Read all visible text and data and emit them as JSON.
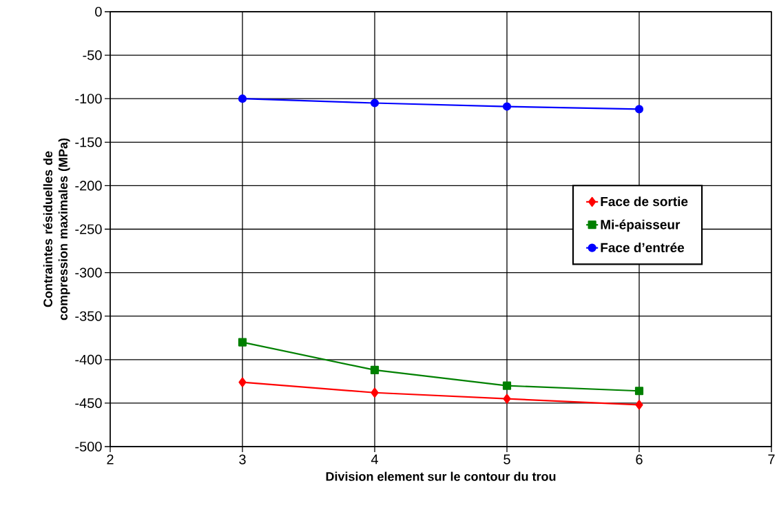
{
  "chart_data": {
    "type": "line",
    "xlabel": "Division element sur le contour du trou",
    "ylabel": "Contraintes résiduelles de compression maximales (MPa)",
    "x": [
      3,
      4,
      5,
      6
    ],
    "series": [
      {
        "name": "Face de sortie",
        "color": "#ff0000",
        "marker": "diamond",
        "values": [
          -426,
          -438,
          -445,
          -452
        ]
      },
      {
        "name": "Mi-épaisseur",
        "color": "#008000",
        "marker": "square",
        "values": [
          -380,
          -412,
          -430,
          -436
        ]
      },
      {
        "name": "Face d’entrée",
        "color": "#0000ff",
        "marker": "circle",
        "values": [
          -100,
          -105,
          -109,
          -112
        ]
      }
    ],
    "xlim": [
      2,
      7
    ],
    "xticks": [
      2,
      3,
      4,
      5,
      6,
      7
    ],
    "ylim": [
      -500,
      0
    ],
    "yticks": [
      -500,
      -450,
      -400,
      -350,
      -300,
      -250,
      -200,
      -150,
      -100,
      -50,
      0
    ],
    "grid": true,
    "legend": "right",
    "line_style": "solid"
  }
}
